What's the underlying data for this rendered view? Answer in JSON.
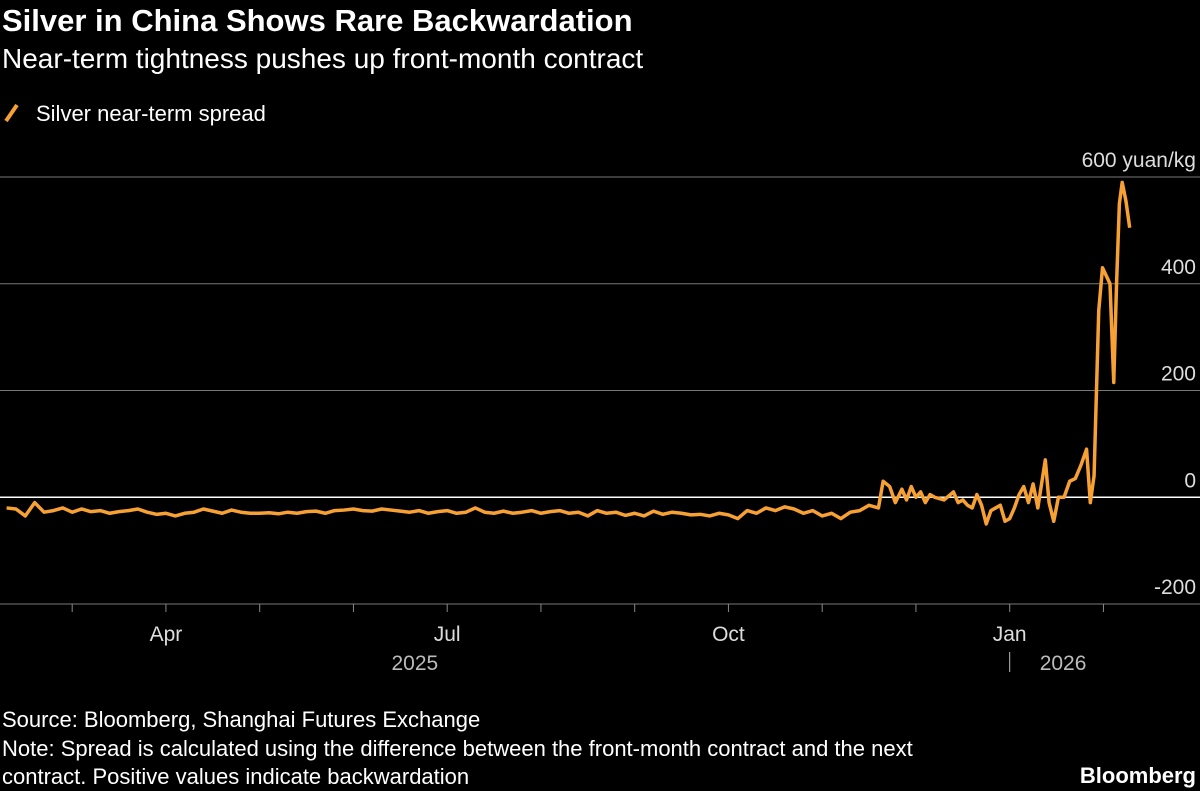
{
  "chart_data": {
    "type": "line",
    "title": "Silver in China Shows Rare Backwardation",
    "subtitle": "Near-term tightness pushes up front-month contract",
    "series": [
      {
        "name": "Silver near-term spread",
        "color": "#f7a034",
        "x": [
          1.3,
          1.4,
          1.5,
          1.6,
          1.7,
          1.8,
          1.9,
          2.0,
          2.1,
          2.2,
          2.3,
          2.4,
          2.5,
          2.6,
          2.7,
          2.8,
          2.9,
          3.0,
          3.1,
          3.2,
          3.3,
          3.4,
          3.5,
          3.6,
          3.7,
          3.8,
          3.9,
          4.0,
          4.1,
          4.2,
          4.3,
          4.4,
          4.5,
          4.6,
          4.7,
          4.8,
          4.9,
          5.0,
          5.1,
          5.2,
          5.3,
          5.4,
          5.5,
          5.6,
          5.7,
          5.8,
          5.9,
          6.0,
          6.1,
          6.2,
          6.3,
          6.4,
          6.5,
          6.6,
          6.7,
          6.8,
          6.9,
          7.0,
          7.1,
          7.2,
          7.3,
          7.4,
          7.5,
          7.6,
          7.7,
          7.8,
          7.9,
          8.0,
          8.1,
          8.2,
          8.3,
          8.4,
          8.5,
          8.6,
          8.7,
          8.8,
          8.9,
          9.0,
          9.1,
          9.2,
          9.3,
          9.4,
          9.5,
          9.6,
          9.7,
          9.8,
          9.9,
          10.0,
          10.1,
          10.2,
          10.3,
          10.4,
          10.5,
          10.6,
          10.65,
          10.72,
          10.78,
          10.85,
          10.9,
          10.95,
          11.0,
          11.05,
          11.1,
          11.15,
          11.2,
          11.3,
          11.4,
          11.45,
          11.5,
          11.55,
          11.6,
          11.65,
          11.7,
          11.75,
          11.8,
          11.85,
          11.9,
          11.95,
          12.0,
          12.05,
          12.1,
          12.15,
          12.2,
          12.25,
          12.3,
          12.38,
          12.42,
          12.47,
          12.52,
          12.58,
          12.64,
          12.7,
          12.76,
          12.82,
          12.86,
          12.9,
          12.95,
          12.99,
          13.07,
          13.11,
          13.14,
          13.17,
          13.2,
          13.24,
          13.28
        ],
        "values": [
          -20,
          -22,
          -35,
          -10,
          -28,
          -25,
          -20,
          -28,
          -22,
          -27,
          -25,
          -30,
          -27,
          -25,
          -22,
          -28,
          -32,
          -30,
          -35,
          -30,
          -28,
          -22,
          -26,
          -30,
          -24,
          -28,
          -30,
          -30,
          -29,
          -31,
          -28,
          -30,
          -27,
          -26,
          -30,
          -25,
          -24,
          -22,
          -25,
          -26,
          -22,
          -24,
          -26,
          -28,
          -25,
          -30,
          -27,
          -25,
          -30,
          -28,
          -20,
          -28,
          -30,
          -26,
          -30,
          -28,
          -25,
          -30,
          -27,
          -25,
          -30,
          -28,
          -35,
          -25,
          -30,
          -28,
          -34,
          -30,
          -35,
          -26,
          -32,
          -28,
          -30,
          -33,
          -32,
          -35,
          -30,
          -33,
          -40,
          -25,
          -30,
          -20,
          -25,
          -18,
          -22,
          -30,
          -25,
          -35,
          -30,
          -40,
          -28,
          -25,
          -15,
          -20,
          30,
          20,
          -10,
          15,
          -5,
          20,
          0,
          10,
          -10,
          5,
          0,
          -5,
          10,
          -10,
          -5,
          -15,
          -20,
          5,
          -15,
          -50,
          -25,
          -20,
          -15,
          -45,
          -40,
          -20,
          5,
          20,
          -10,
          25,
          -20,
          70,
          -10,
          -45,
          0,
          0,
          30,
          35,
          60,
          90,
          -10,
          40,
          350,
          430,
          400,
          215,
          400,
          550,
          590,
          555,
          505
        ]
      }
    ],
    "xlim": [
      1.23,
      14.03
    ],
    "xticks": [
      {
        "value": 3,
        "label": "Apr"
      },
      {
        "value": 6,
        "label": "Jul"
      },
      {
        "value": 9,
        "label": "Oct"
      },
      {
        "value": 12,
        "label": "Jan"
      }
    ],
    "xminor_ticks": [
      2,
      4,
      5,
      7,
      8,
      10,
      11,
      13
    ],
    "years": [
      "2025",
      "2026"
    ],
    "ylim": [
      -200,
      600
    ],
    "yticks": [
      -200,
      0,
      200,
      400,
      {
        "value": 600,
        "label": "600 yuan/kg"
      }
    ],
    "grid": true,
    "source": "Source: Bloomberg, Shanghai Futures Exchange",
    "note": [
      "Note: Spread is calculated using the difference between the front-month contract and the next",
      "contract. Positive values indicate backwardation"
    ],
    "brand": "Bloomberg"
  }
}
